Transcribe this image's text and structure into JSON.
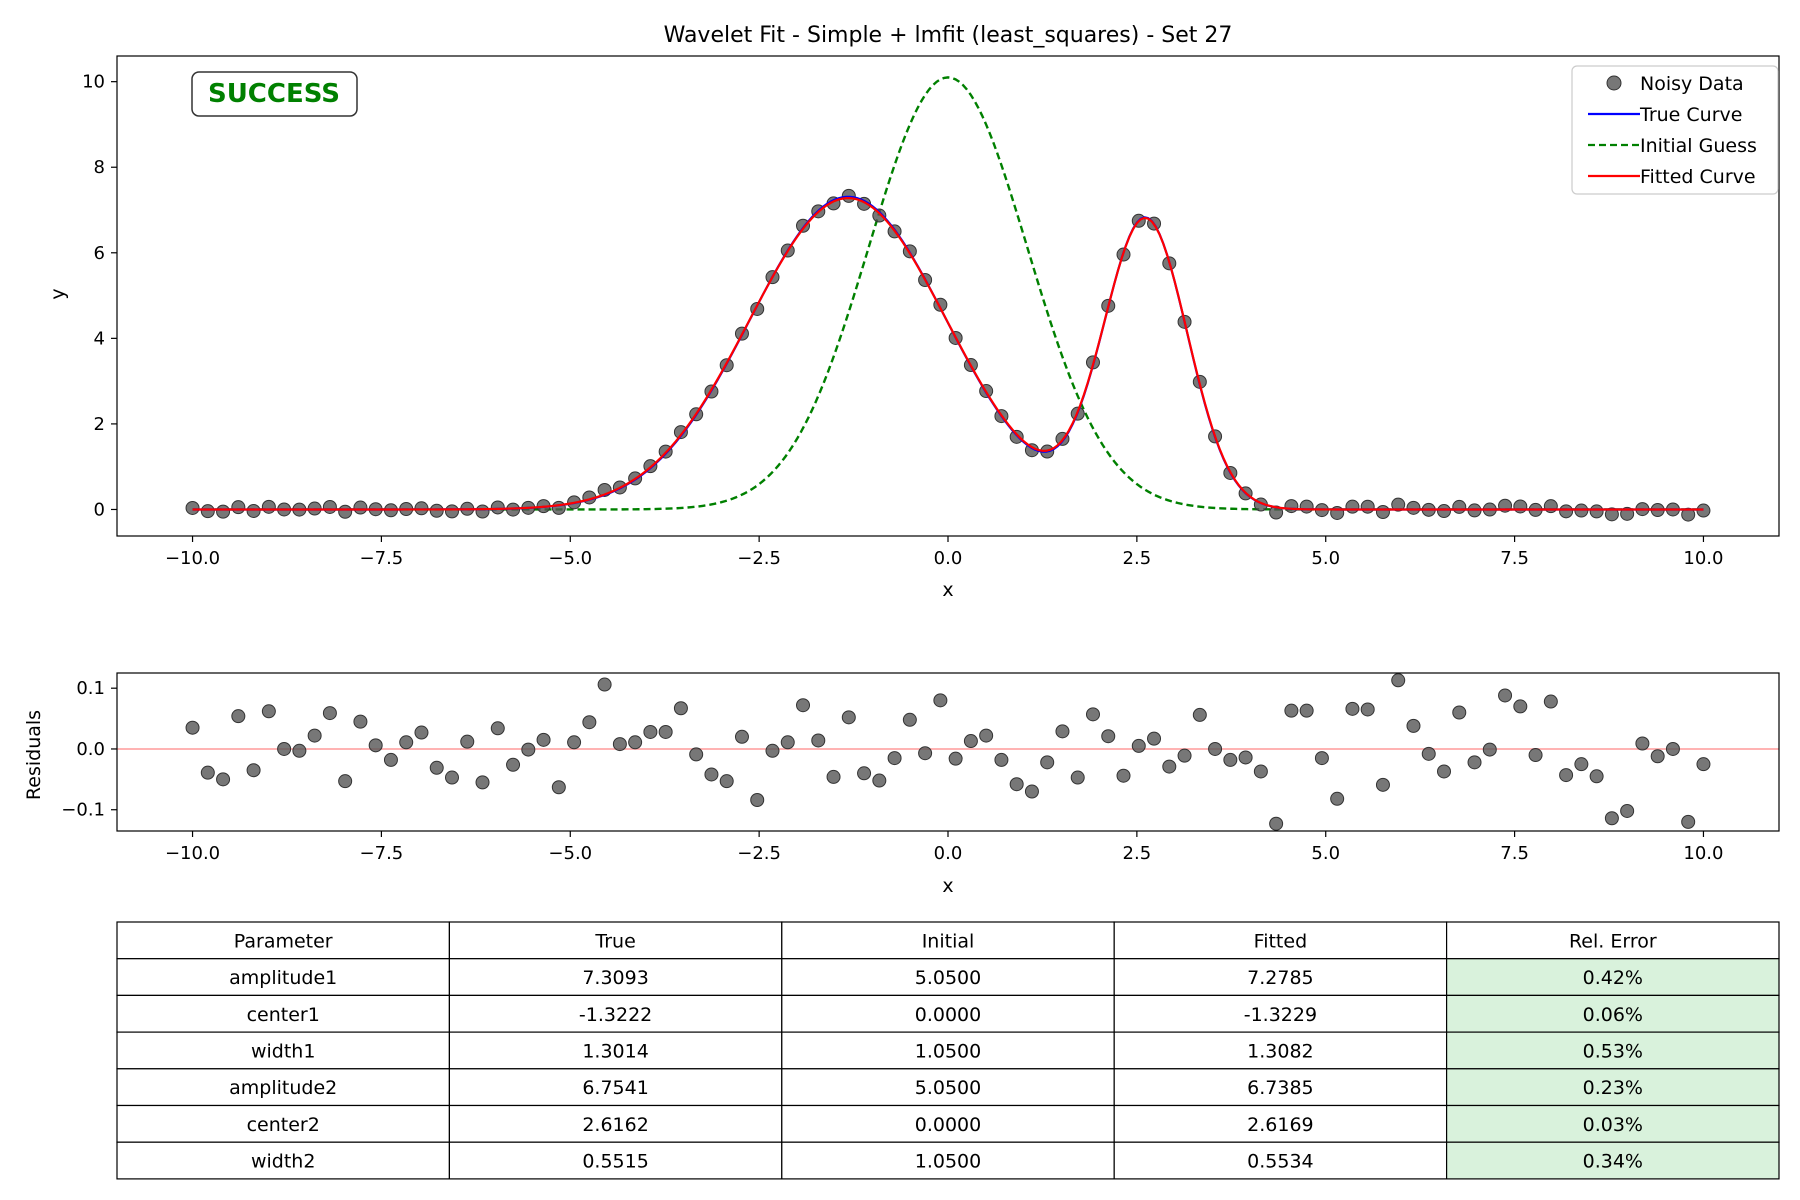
{
  "chart_data": [
    {
      "type": "line",
      "title": "Wavelet Fit - Simple + lmfit (least_squares) - Set 27",
      "xlabel": "x",
      "ylabel": "y",
      "xlim": [
        -11.0,
        11.0
      ],
      "ylim": [
        -0.62,
        10.6
      ],
      "xticks": [
        -10.0,
        -7.5,
        -5.0,
        -2.5,
        0.0,
        2.5,
        5.0,
        7.5,
        10.0
      ],
      "xtick_labels": [
        "−10.0",
        "−7.5",
        "−5.0",
        "−2.5",
        "0.0",
        "2.5",
        "5.0",
        "7.5",
        "10.0"
      ],
      "yticks": [
        0,
        2,
        4,
        6,
        8,
        10
      ],
      "ytick_labels": [
        "0",
        "2",
        "4",
        "6",
        "8",
        "10"
      ],
      "grid": false,
      "legend_position": "top-right",
      "status_badge": "SUCCESS",
      "status_color": "#008000",
      "x_samples": {
        "start": -10,
        "stop": 10,
        "count": 100
      },
      "true_params": {
        "amplitude1": 7.3093,
        "center1": -1.3222,
        "width1": 1.3014,
        "amplitude2": 6.7541,
        "center2": 2.6162,
        "width2": 0.5515
      },
      "initial_params": {
        "amplitude1": 5.05,
        "center1": 0.0,
        "width1": 1.05,
        "amplitude2": 5.05,
        "center2": 0.0,
        "width2": 1.05
      },
      "fitted_params": {
        "amplitude1": 7.2785,
        "center1": -1.3229,
        "width1": 1.3082,
        "amplitude2": 6.7385,
        "center2": 2.6169,
        "width2": 0.5534
      },
      "series": [
        {
          "name": "Noisy Data",
          "kind": "scatter",
          "color": "#555555"
        },
        {
          "name": "True Curve",
          "kind": "line",
          "color": "#0000ff",
          "dash": "solid"
        },
        {
          "name": "Initial Guess",
          "kind": "line",
          "color": "#008000",
          "dash": "dashed"
        },
        {
          "name": "Fitted Curve",
          "kind": "line",
          "color": "#ff0000",
          "dash": "solid"
        }
      ]
    },
    {
      "type": "scatter",
      "title": "",
      "xlabel": "x",
      "ylabel": "Residuals",
      "xlim": [
        -11.0,
        11.0
      ],
      "ylim": [
        -0.135,
        0.125
      ],
      "xticks": [
        -10.0,
        -7.5,
        -5.0,
        -2.5,
        0.0,
        2.5,
        5.0,
        7.5,
        10.0
      ],
      "xtick_labels": [
        "−10.0",
        "−7.5",
        "−5.0",
        "−2.5",
        "0.0",
        "2.5",
        "5.0",
        "7.5",
        "10.0"
      ],
      "yticks": [
        -0.1,
        0.0,
        0.1
      ],
      "ytick_labels": [
        "−0.1",
        "0.0",
        "0.1"
      ],
      "zero_line_color": "#ffb3b3",
      "point_color": "#555555",
      "residuals": [
        0.035,
        -0.039,
        -0.05,
        0.054,
        -0.035,
        0.062,
        0.0,
        -0.003,
        0.022,
        0.059,
        -0.053,
        0.045,
        0.006,
        -0.018,
        0.011,
        0.027,
        -0.031,
        -0.047,
        0.012,
        -0.055,
        0.034,
        -0.026,
        -0.001,
        0.015,
        -0.063,
        0.011,
        0.044,
        0.106,
        0.008,
        0.011,
        0.028,
        0.028,
        0.067,
        -0.009,
        -0.042,
        -0.053,
        0.02,
        -0.084,
        -0.003,
        0.011,
        0.072,
        0.014,
        -0.046,
        0.052,
        -0.04,
        -0.052,
        -0.015,
        0.048,
        -0.007,
        0.08,
        -0.016,
        0.013,
        0.022,
        -0.018,
        -0.058,
        -0.07,
        -0.022,
        0.029,
        -0.047,
        0.057,
        0.021,
        -0.044,
        0.005,
        0.017,
        -0.029,
        -0.011,
        0.056,
        0.0,
        -0.018,
        -0.014,
        -0.037,
        -0.123,
        0.063,
        0.063,
        -0.015,
        -0.082,
        0.066,
        0.065,
        -0.059,
        0.113,
        0.038,
        -0.008,
        -0.037,
        0.06,
        -0.022,
        -0.001,
        0.088,
        0.07,
        -0.01,
        0.078,
        -0.043,
        -0.025,
        -0.045,
        -0.114,
        -0.102,
        0.009,
        -0.012,
        0.0,
        -0.12,
        -0.025
      ]
    },
    {
      "type": "table",
      "headers": [
        "Parameter",
        "True",
        "Initial",
        "Fitted",
        "Rel. Error"
      ],
      "rows": [
        [
          "amplitude1",
          "7.3093",
          "5.0500",
          "7.2785",
          "0.42%"
        ],
        [
          "center1",
          "-1.3222",
          "0.0000",
          "-1.3229",
          "0.06%"
        ],
        [
          "width1",
          "1.3014",
          "1.0500",
          "1.3082",
          "0.53%"
        ],
        [
          "amplitude2",
          "6.7541",
          "5.0500",
          "6.7385",
          "0.23%"
        ],
        [
          "center2",
          "2.6162",
          "0.0000",
          "2.6169",
          "0.03%"
        ],
        [
          "width2",
          "0.5515",
          "1.0500",
          "0.5534",
          "0.34%"
        ]
      ],
      "highlight_column": 4,
      "highlight_color": "#d9f2dc"
    }
  ]
}
